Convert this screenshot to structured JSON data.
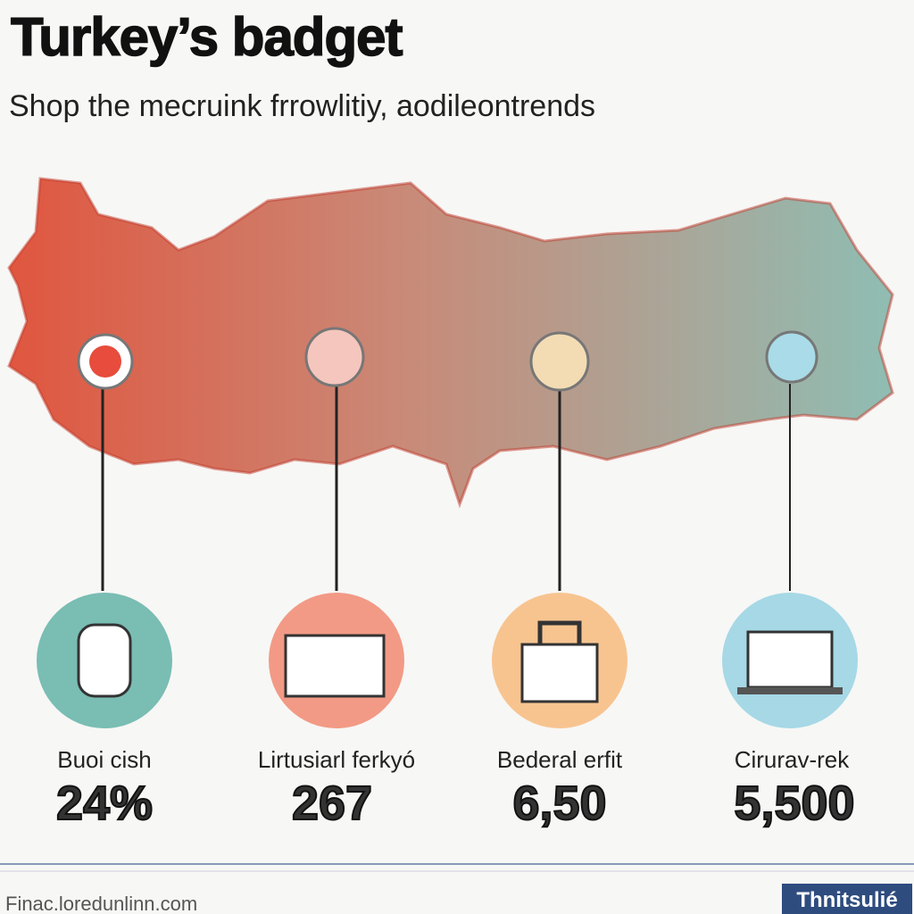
{
  "header": {
    "title": "Turkey’s badget",
    "subtitle": "Shop the mecruink frrowlitiy, aodileontrends"
  },
  "stats": [
    {
      "label": "Buoi cish",
      "value": "24%"
    },
    {
      "label": "Lirtusiarl ferkyó",
      "value": "267"
    },
    {
      "label": "Bederal erfit",
      "value": "6,50"
    },
    {
      "label": "Cirurav-rek",
      "value": "5,500"
    }
  ],
  "footer": {
    "source": "Finac.loredunlinn.com",
    "badge": "Thnitsulié"
  }
}
